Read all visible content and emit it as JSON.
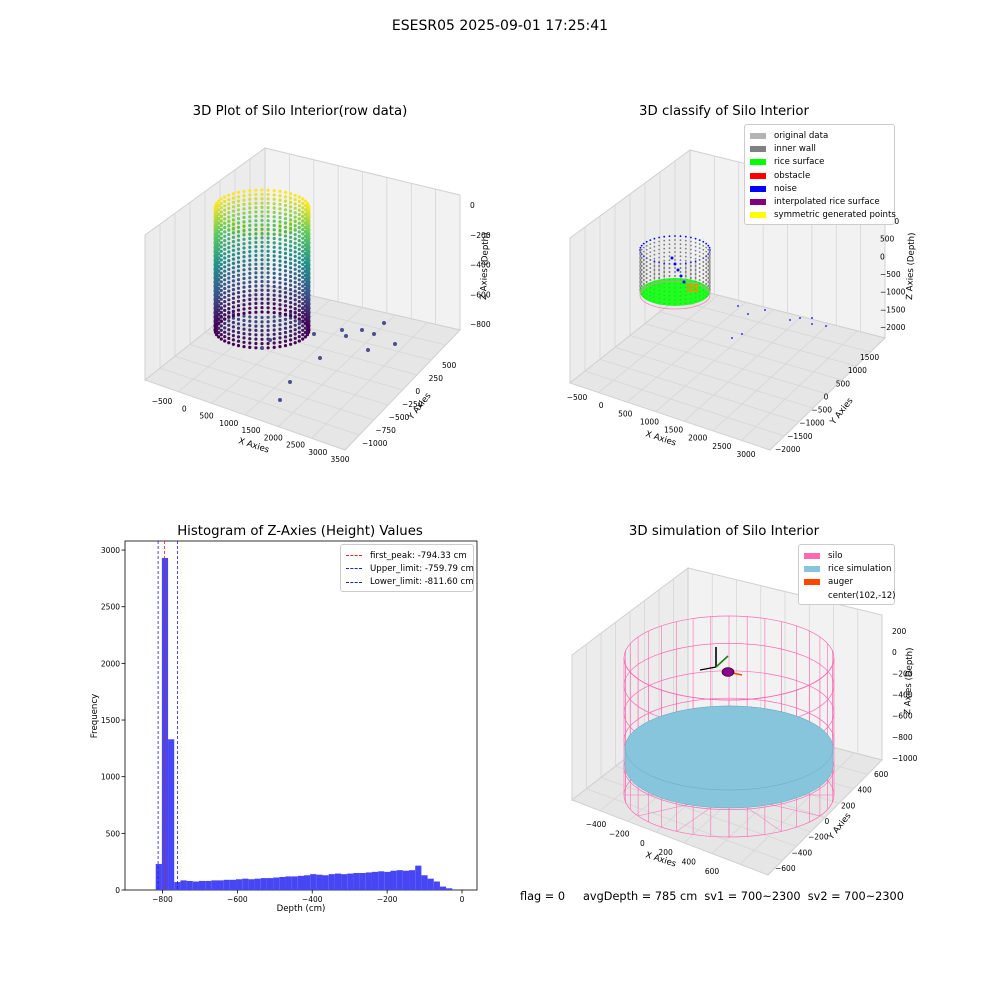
{
  "suptitle": "ESESR05 2025-09-01 17:25:41",
  "status_line": "flag = 0     avgDepth = 785 cm  sv1 = 700~2300  sv2 = 700~2300",
  "colors": {
    "histogram": "#4646f5",
    "first_peak": "#d62728",
    "limits": "#1f1fcc",
    "silo": "#ff69b4",
    "rice": "#87c5dd",
    "auger": "#ff4500",
    "original": "#b4b4b4",
    "inner_wall": "#808080",
    "rice_surface": "#00ff00",
    "obstacle": "#ff0000",
    "noise": "#0000ff",
    "interpolated": "#800080",
    "symmetric": "#ffff00"
  },
  "chart_data": [
    {
      "type": "scatter",
      "title": "3D Plot of Silo Interior(row data)",
      "xlabel": "X Axies",
      "ylabel": "Y Axies",
      "zlabel": "Z Axies (Depth)",
      "xticks": [
        "−500",
        "0",
        "500",
        "1000",
        "1500",
        "2000",
        "2500",
        "3000",
        "3500"
      ],
      "yticks": [
        "500",
        "250",
        "0",
        "−250",
        "−500",
        "−750",
        "−1000"
      ],
      "zticks": [
        "0",
        "−200",
        "−400",
        "−600",
        "−800"
      ],
      "colormap": "viridis",
      "grid": true
    },
    {
      "type": "scatter",
      "title": "3D classify of Silo Interior",
      "xlabel": "X Axies",
      "ylabel": "Y Axies",
      "zlabel": "Z Axies (Depth)",
      "xticks": [
        "−500",
        "0",
        "500",
        "1000",
        "1500",
        "2000",
        "2500",
        "3000"
      ],
      "yticks": [
        "1500",
        "1000",
        "500",
        "0",
        "−500",
        "−1000",
        "−1500",
        "−2000"
      ],
      "zticks": [
        "1000",
        "500",
        "0",
        "−500",
        "−1000",
        "−1500",
        "−2000"
      ],
      "legend": [
        {
          "label": "original data",
          "color": "#b4b4b4"
        },
        {
          "label": "inner wall",
          "color": "#808080"
        },
        {
          "label": "rice surface",
          "color": "#00ff00"
        },
        {
          "label": "obstacle",
          "color": "#ff0000"
        },
        {
          "label": "noise",
          "color": "#0000ff"
        },
        {
          "label": "interpolated rice surface",
          "color": "#800080"
        },
        {
          "label": "symmetric generated points",
          "color": "#ffff00"
        }
      ],
      "legend_position": "top-right",
      "grid": true
    },
    {
      "type": "bar",
      "title": "Histogram of Z-Axies (Height) Values",
      "xlabel": "Depth (cm)",
      "ylabel": "Frequency",
      "xlim": [
        -900,
        40
      ],
      "ylim": [
        0,
        3080
      ],
      "xticks": [
        -800,
        -600,
        -400,
        -200,
        0
      ],
      "yticks": [
        0,
        500,
        1000,
        1500,
        2000,
        2500,
        3000
      ],
      "xtick_labels": [
        "−800",
        "−600",
        "−400",
        "−200",
        "0"
      ],
      "bin_start": -818,
      "bin_width": 16.5,
      "values": [
        230,
        2930,
        1330,
        70,
        85,
        80,
        75,
        80,
        80,
        85,
        85,
        90,
        90,
        95,
        100,
        95,
        100,
        105,
        105,
        110,
        115,
        120,
        120,
        125,
        130,
        140,
        135,
        130,
        140,
        145,
        140,
        145,
        150,
        150,
        155,
        160,
        165,
        160,
        170,
        175,
        170,
        175,
        215,
        130,
        100,
        75,
        30,
        15
      ],
      "lines": [
        {
          "x": -794.33,
          "label": "first_peak: -794.33 cm",
          "color": "#d62728"
        },
        {
          "x": -759.79,
          "label": "Upper_limit: -759.79 cm",
          "color": "#1f1fcc"
        },
        {
          "x": -811.6,
          "label": "Lower_limit: -811.60 cm",
          "color": "#1f1fcc"
        }
      ],
      "legend_position": "top-right"
    },
    {
      "type": "scatter",
      "title": "3D simulation of Silo Interior",
      "xlabel": "X Axies",
      "ylabel": "Y Axies",
      "zlabel": "Z Axies (Depth)",
      "xticks": [
        "−400",
        "−200",
        "0",
        "200",
        "400",
        "600"
      ],
      "yticks": [
        "600",
        "400",
        "200",
        "0",
        "−200",
        "−400",
        "−600"
      ],
      "zticks": [
        "200",
        "0",
        "−200",
        "−400",
        "−600",
        "−800",
        "−1000"
      ],
      "legend": [
        {
          "label": "silo",
          "color": "#ff69b4"
        },
        {
          "label": "rice simulation",
          "color": "#87c5dd"
        },
        {
          "label": "auger",
          "color": "#ff4500"
        },
        {
          "label": "center(102,-12)",
          "color": ""
        }
      ],
      "legend_position": "top-right",
      "grid": true
    }
  ]
}
